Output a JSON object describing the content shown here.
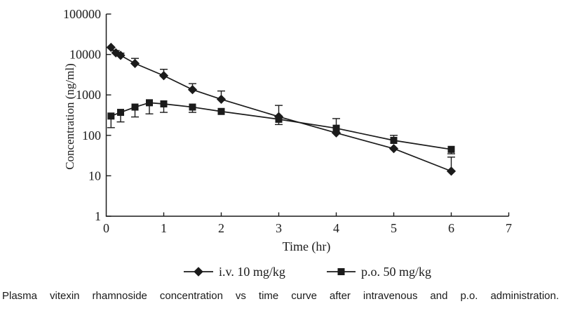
{
  "figure": {
    "caption": "Plasma vitexin rhamnoside concentration vs time curve after intravenous and p.o. administration."
  },
  "chart_data": {
    "type": "line",
    "title": "",
    "xlabel": "Time (hr)",
    "ylabel": "Concentration (ng/ml)",
    "y_scale": "log",
    "xlim": [
      0,
      7
    ],
    "ylim": [
      1,
      100000
    ],
    "grid": false,
    "legend_position": "bottom",
    "x_ticks": [
      0,
      1,
      2,
      3,
      4,
      5,
      6,
      7
    ],
    "y_ticks": [
      1,
      10,
      100,
      1000,
      10000,
      100000
    ],
    "line_color": "#1b1b1b",
    "series": [
      {
        "name": "i.v. 10 mg/kg",
        "marker": "diamond",
        "color": "#1b1b1b",
        "points": [
          {
            "t": 0.083,
            "c": 15000
          },
          {
            "t": 0.167,
            "c": 11000,
            "hi": 12500
          },
          {
            "t": 0.25,
            "c": 9500,
            "hi": 10800
          },
          {
            "t": 0.5,
            "c": 6000,
            "hi": 8000
          },
          {
            "t": 1,
            "c": 3000,
            "hi": 4300
          },
          {
            "t": 1.5,
            "c": 1350,
            "hi": 1900
          },
          {
            "t": 2,
            "c": 780,
            "hi": 1250
          },
          {
            "t": 3,
            "c": 290,
            "hi": 550
          },
          {
            "t": 4,
            "c": 115
          },
          {
            "t": 5,
            "c": 47
          },
          {
            "t": 6,
            "c": 13,
            "hi": 29
          }
        ]
      },
      {
        "name": "p.o. 50 mg/kg",
        "marker": "square",
        "color": "#1b1b1b",
        "points": [
          {
            "t": 0.083,
            "c": 300,
            "lo": 155
          },
          {
            "t": 0.25,
            "c": 370,
            "lo": 215
          },
          {
            "t": 0.5,
            "c": 500,
            "lo": 285
          },
          {
            "t": 0.75,
            "c": 640,
            "lo": 340
          },
          {
            "t": 1,
            "c": 600,
            "lo": 370
          },
          {
            "t": 1.5,
            "c": 500,
            "lo": 370
          },
          {
            "t": 2,
            "c": 390
          },
          {
            "t": 3,
            "c": 250,
            "lo": 185
          },
          {
            "t": 4,
            "c": 150,
            "hi": 260
          },
          {
            "t": 5,
            "c": 75,
            "hi": 100
          },
          {
            "t": 6,
            "c": 45,
            "lo": 35
          }
        ]
      }
    ]
  }
}
